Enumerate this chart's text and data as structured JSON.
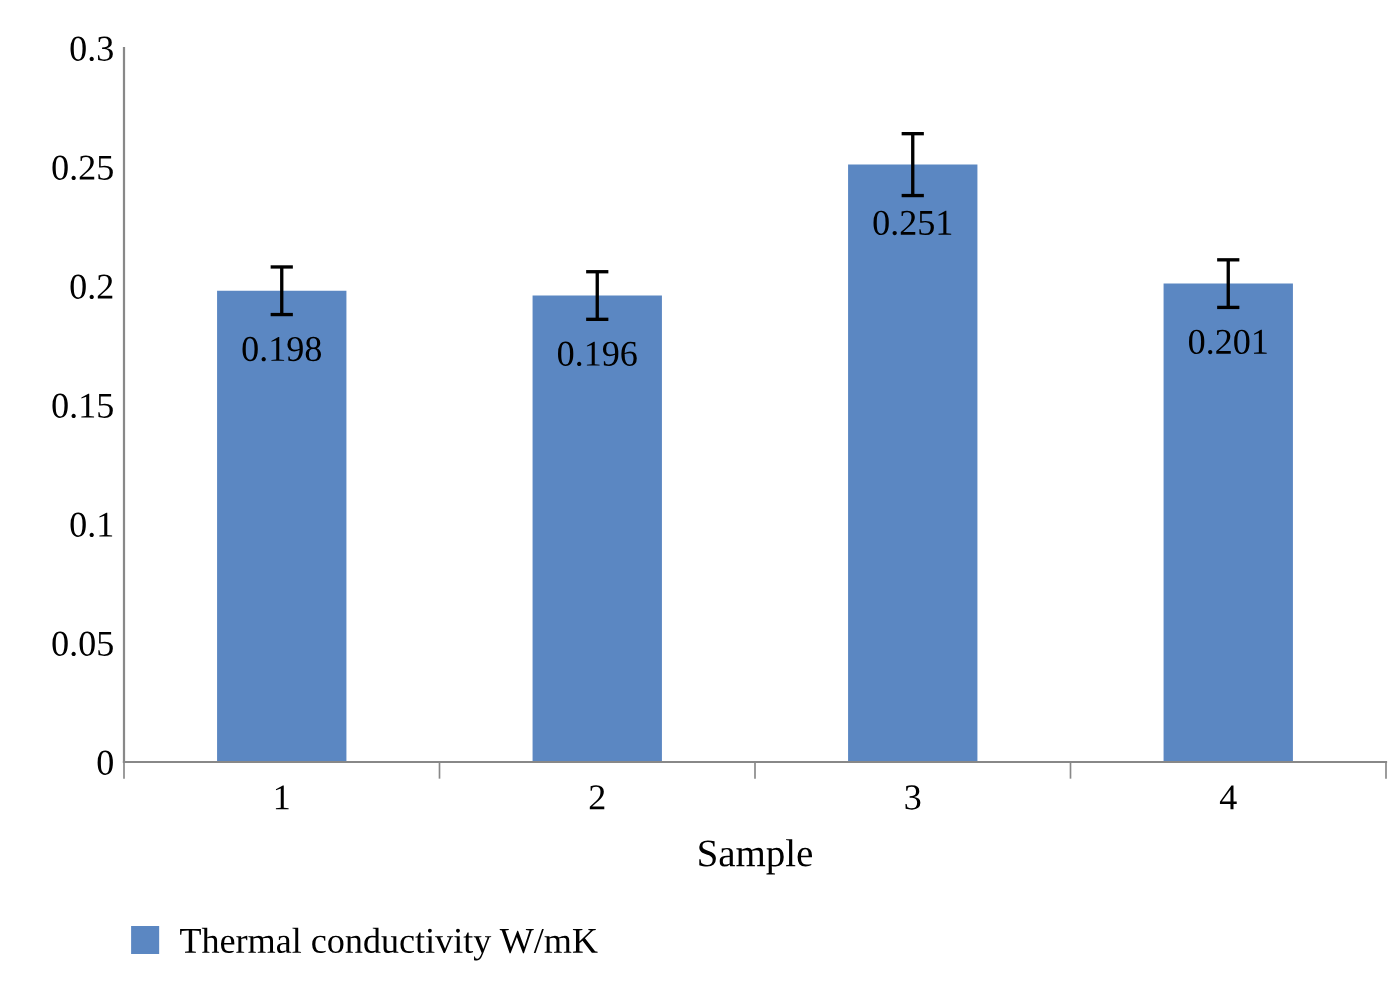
{
  "chart_data": {
    "type": "bar",
    "xlabel": "Sample",
    "categories": [
      "1",
      "2",
      "3",
      "4"
    ],
    "series": [
      {
        "name": "Thermal conductivity W/mK",
        "color": "#5b87c2",
        "values": [
          0.198,
          0.196,
          0.251,
          0.201
        ],
        "errors": [
          0.01,
          0.01,
          0.013,
          0.01
        ]
      }
    ],
    "ylim": [
      0,
      0.3
    ],
    "yticks": [
      {
        "value": 0,
        "label": "0"
      },
      0.05,
      0.1,
      0.15,
      0.2,
      0.25,
      0.3
    ],
    "data_labels": true,
    "grid": false,
    "legend": "bottom left"
  }
}
